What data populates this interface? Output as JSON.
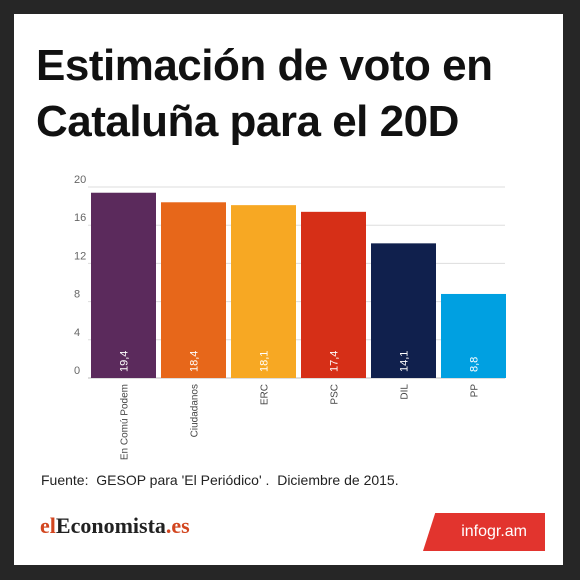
{
  "title": "Estimación de voto en Cataluña para el 20D",
  "source": "Fuente:  GESOP para 'El Periódico' .  Diciembre de 2015.",
  "brand": {
    "part1": "el",
    "part2": "Economista",
    "part3": ".es"
  },
  "badge": "infogr.am",
  "chart_data": {
    "type": "bar",
    "categories": [
      "En Comú Podem",
      "Ciudadanos",
      "ERC",
      "PSC",
      "DIL",
      "PP"
    ],
    "values": [
      19.4,
      18.4,
      18.1,
      17.4,
      14.1,
      8.8
    ],
    "value_labels": [
      "19,4",
      "18,4",
      "18,1",
      "17,4",
      "14,1",
      "8,8"
    ],
    "colors": [
      "#5b2a5c",
      "#e7671a",
      "#f7a823",
      "#d62f17",
      "#10204d",
      "#00a0e1"
    ],
    "yticks": [
      "0",
      "4",
      "8",
      "12",
      "16",
      "20"
    ],
    "ylim": [
      0,
      20
    ],
    "grid": true
  }
}
